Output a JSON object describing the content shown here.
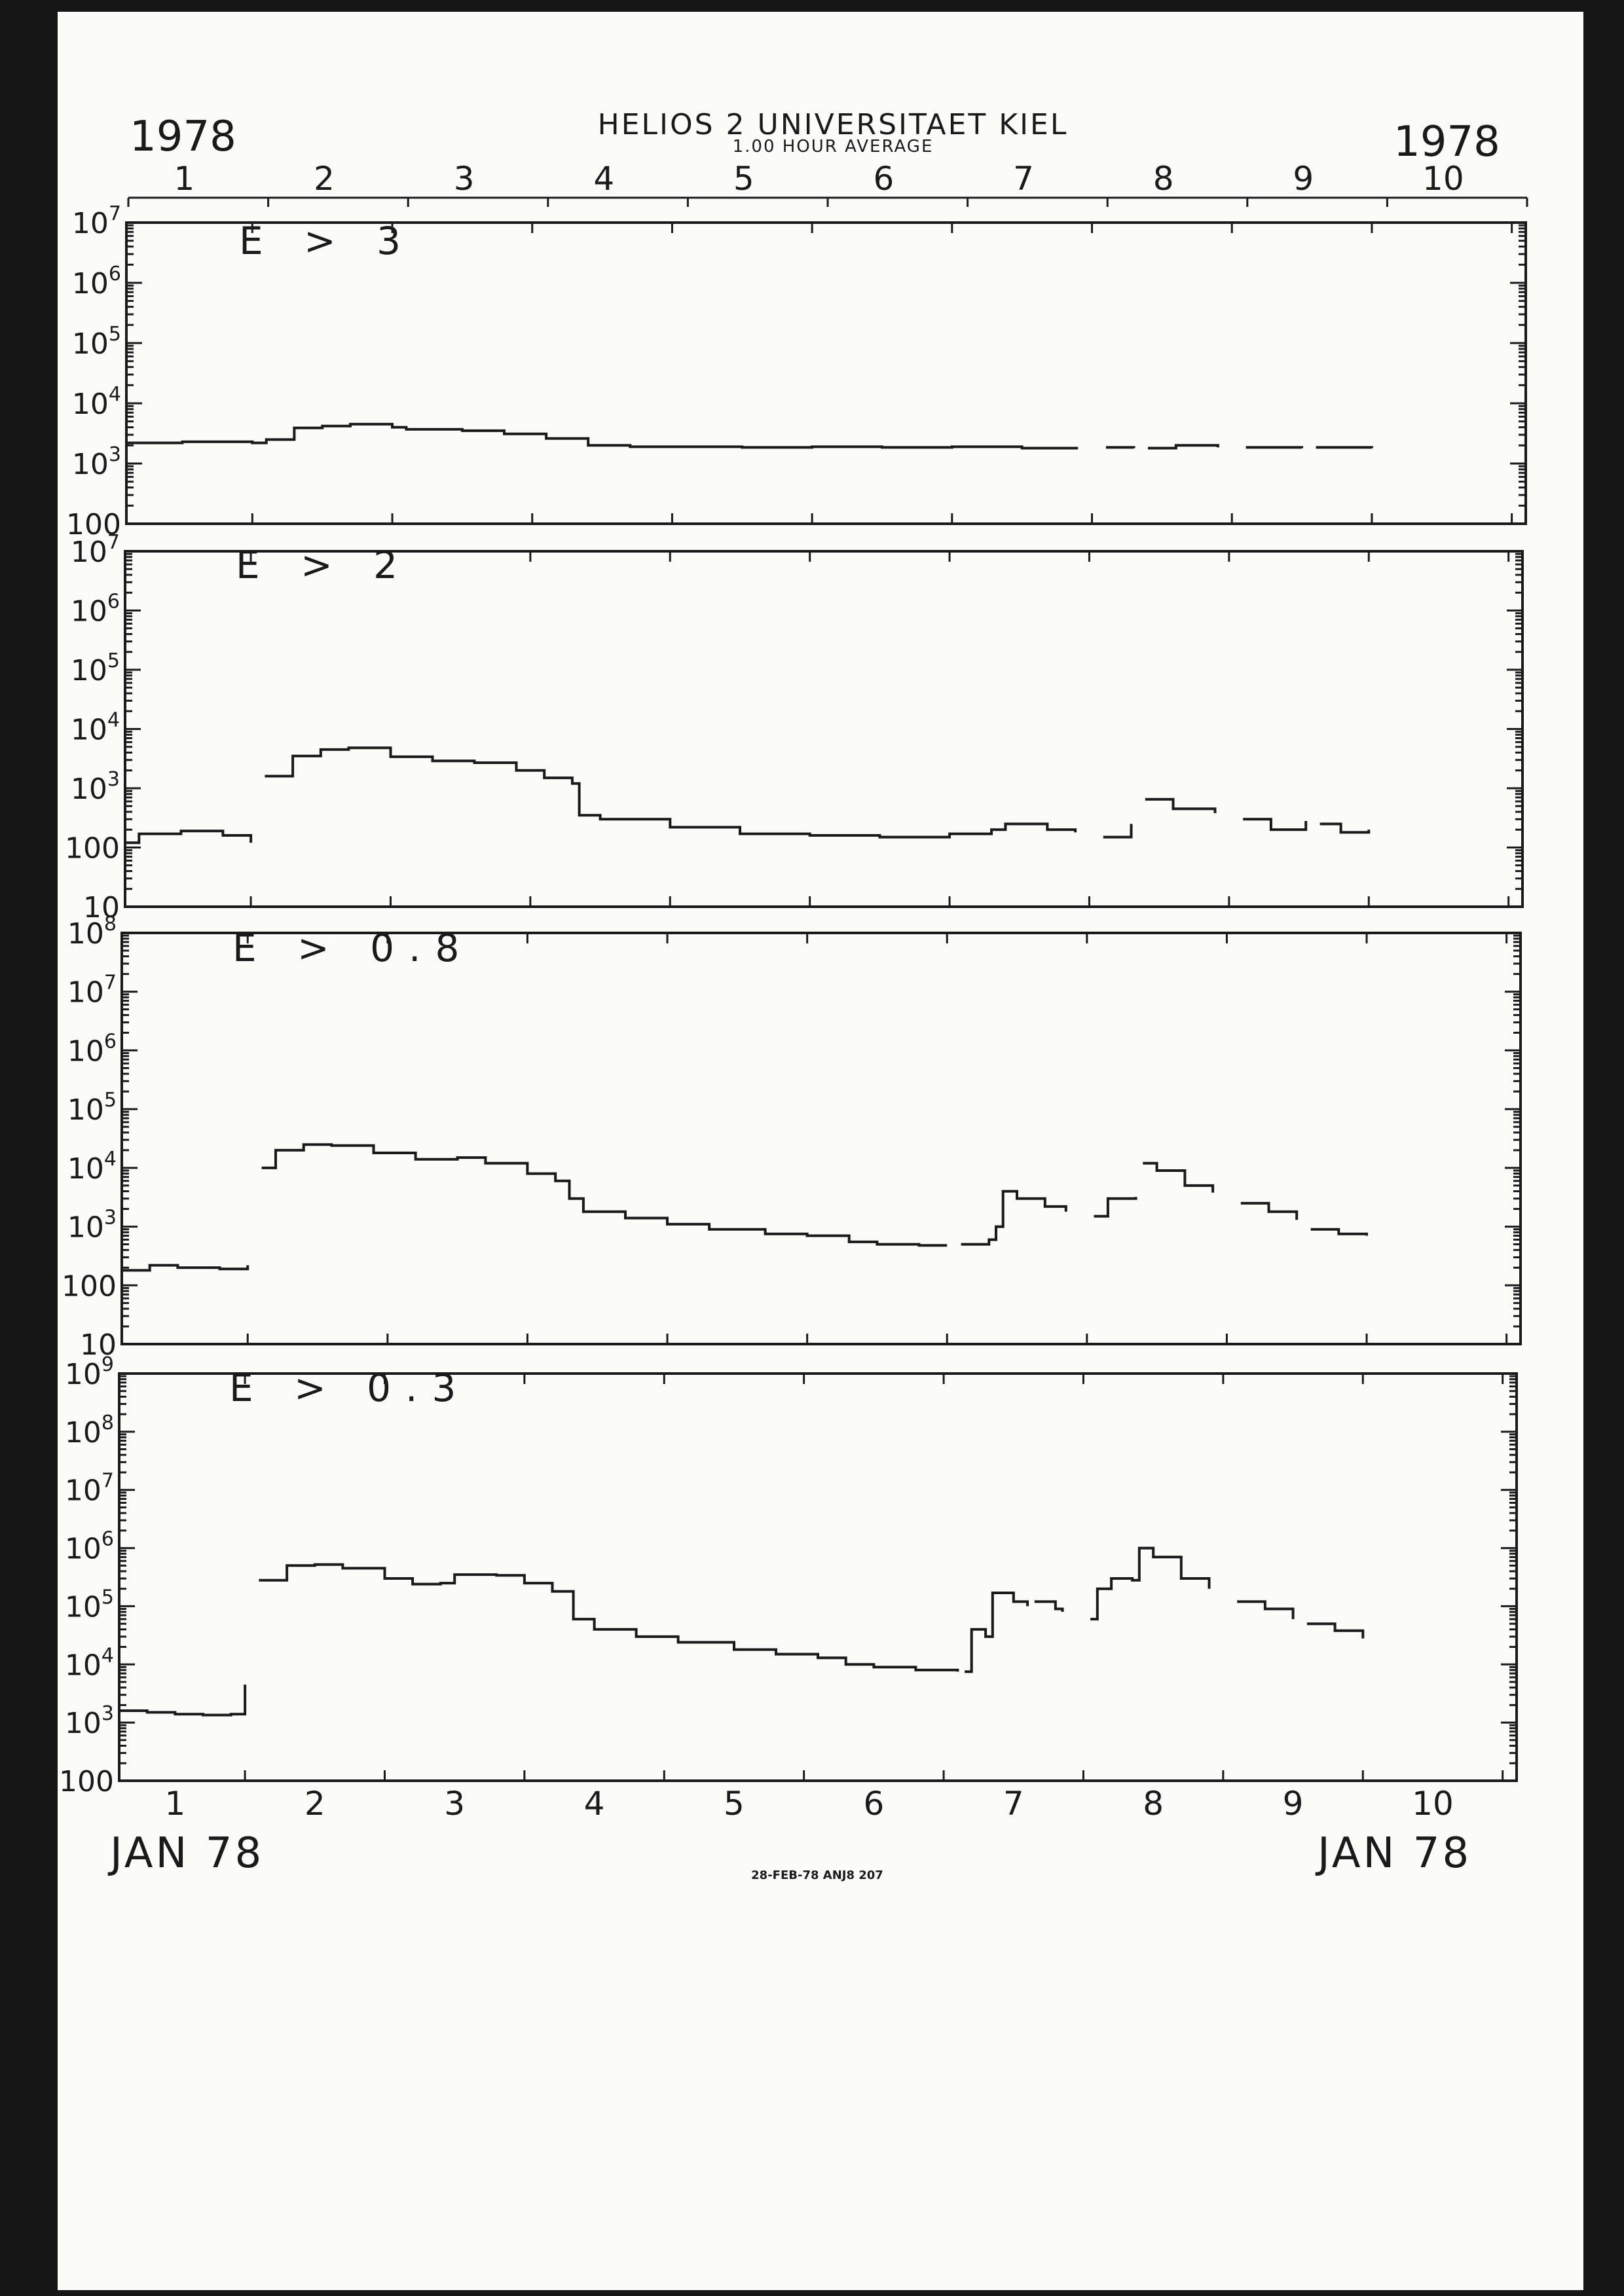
{
  "header": {
    "year_left": "1978",
    "year_right": "1978",
    "title": "HELIOS 2  UNIVERSITAET KIEL",
    "subtitle": "1.00 HOUR AVERAGE"
  },
  "footer": {
    "month_left": "JAN 78",
    "month_right": "JAN 78",
    "stamp": "28-FEB-78 ANJ8 207"
  },
  "chart_data": [
    {
      "type": "line",
      "label": "E > 3",
      "ylim": [
        100,
        10000000
      ],
      "y_scale": "log",
      "y_ticks": [
        {
          "v": 100,
          "base": "100",
          "exp": ""
        },
        {
          "v": 1000,
          "base": "10",
          "exp": "3"
        },
        {
          "v": 10000,
          "base": "10",
          "exp": "4"
        },
        {
          "v": 100000,
          "base": "10",
          "exp": "5"
        },
        {
          "v": 1000000,
          "base": "10",
          "exp": "6"
        },
        {
          "v": 10000000,
          "base": "10",
          "exp": "7"
        }
      ],
      "xlim": [
        0.6,
        10.6
      ],
      "x_ticks": [
        1,
        2,
        3,
        4,
        5,
        6,
        7,
        8,
        9,
        10
      ],
      "segments": [
        [
          [
            0.6,
            2200
          ],
          [
            1.0,
            2300
          ],
          [
            1.5,
            2200
          ],
          [
            1.6,
            2500
          ],
          [
            1.8,
            3900
          ],
          [
            2.0,
            4200
          ],
          [
            2.2,
            4500
          ],
          [
            2.5,
            4000
          ],
          [
            2.6,
            3700
          ],
          [
            3.0,
            3500
          ],
          [
            3.3,
            3100
          ],
          [
            3.6,
            2600
          ],
          [
            3.9,
            2000
          ],
          [
            4.2,
            1900
          ],
          [
            4.6,
            1900
          ],
          [
            5.0,
            1850
          ],
          [
            5.5,
            1900
          ],
          [
            6.0,
            1850
          ],
          [
            6.5,
            1900
          ],
          [
            7.0,
            1800
          ],
          [
            7.4,
            1800
          ]
        ],
        [
          [
            7.6,
            1850
          ],
          [
            7.8,
            1800
          ]
        ],
        [
          [
            7.9,
            1800
          ],
          [
            8.1,
            2000
          ],
          [
            8.4,
            1850
          ]
        ],
        [
          [
            8.6,
            1850
          ],
          [
            9.0,
            1800
          ]
        ],
        [
          [
            9.1,
            1850
          ],
          [
            9.5,
            1800
          ]
        ]
      ]
    },
    {
      "type": "line",
      "label": "E > 2",
      "ylim": [
        10,
        10000000
      ],
      "y_scale": "log",
      "y_ticks": [
        {
          "v": 10,
          "base": "10",
          "exp": ""
        },
        {
          "v": 100,
          "base": "100",
          "exp": ""
        },
        {
          "v": 1000,
          "base": "10",
          "exp": "3"
        },
        {
          "v": 10000,
          "base": "10",
          "exp": "4"
        },
        {
          "v": 100000,
          "base": "10",
          "exp": "5"
        },
        {
          "v": 1000000,
          "base": "10",
          "exp": "6"
        },
        {
          "v": 10000000,
          "base": "10",
          "exp": "7"
        }
      ],
      "xlim": [
        0.6,
        10.6
      ],
      "x_ticks": [
        1,
        2,
        3,
        4,
        5,
        6,
        7,
        8,
        9,
        10
      ],
      "segments": [
        [
          [
            0.6,
            120
          ],
          [
            0.7,
            170
          ],
          [
            1.0,
            190
          ],
          [
            1.3,
            160
          ],
          [
            1.5,
            120
          ]
        ],
        [
          [
            1.6,
            1600
          ],
          [
            1.8,
            3500
          ],
          [
            2.0,
            4500
          ],
          [
            2.2,
            4800
          ],
          [
            2.5,
            3400
          ],
          [
            2.8,
            2900
          ],
          [
            3.1,
            2700
          ],
          [
            3.4,
            2000
          ],
          [
            3.6,
            1500
          ],
          [
            3.8,
            1200
          ],
          [
            3.85,
            350
          ],
          [
            4.0,
            300
          ],
          [
            4.5,
            220
          ],
          [
            5.0,
            170
          ],
          [
            5.5,
            160
          ],
          [
            6.0,
            150
          ],
          [
            6.5,
            170
          ],
          [
            6.8,
            200
          ],
          [
            6.9,
            250
          ],
          [
            7.2,
            200
          ],
          [
            7.4,
            180
          ]
        ],
        [
          [
            7.6,
            150
          ],
          [
            7.8,
            250
          ]
        ],
        [
          [
            7.9,
            650
          ],
          [
            8.1,
            450
          ],
          [
            8.4,
            380
          ]
        ],
        [
          [
            8.6,
            300
          ],
          [
            8.8,
            200
          ],
          [
            9.0,
            200
          ],
          [
            9.05,
            280
          ]
        ],
        [
          [
            9.15,
            250
          ],
          [
            9.3,
            180
          ],
          [
            9.5,
            200
          ]
        ]
      ]
    },
    {
      "type": "line",
      "label": "E > 0.8",
      "ylim": [
        10,
        100000000
      ],
      "y_scale": "log",
      "y_ticks": [
        {
          "v": 10,
          "base": "10",
          "exp": ""
        },
        {
          "v": 100,
          "base": "100",
          "exp": ""
        },
        {
          "v": 1000,
          "base": "10",
          "exp": "3"
        },
        {
          "v": 10000,
          "base": "10",
          "exp": "4"
        },
        {
          "v": 100000,
          "base": "10",
          "exp": "5"
        },
        {
          "v": 1000000,
          "base": "10",
          "exp": "6"
        },
        {
          "v": 10000000,
          "base": "10",
          "exp": "7"
        },
        {
          "v": 100000000,
          "base": "10",
          "exp": "8"
        }
      ],
      "xlim": [
        0.6,
        10.6
      ],
      "x_ticks": [
        1,
        2,
        3,
        4,
        5,
        6,
        7,
        8,
        9,
        10
      ],
      "segments": [
        [
          [
            0.6,
            180
          ],
          [
            0.8,
            220
          ],
          [
            1.0,
            200
          ],
          [
            1.3,
            190
          ],
          [
            1.5,
            220
          ]
        ],
        [
          [
            1.6,
            10000
          ],
          [
            1.7,
            20000
          ],
          [
            1.9,
            25000
          ],
          [
            2.1,
            24000
          ],
          [
            2.4,
            18000
          ],
          [
            2.7,
            14000
          ],
          [
            3.0,
            15000
          ],
          [
            3.2,
            12000
          ],
          [
            3.5,
            8000
          ],
          [
            3.7,
            6000
          ],
          [
            3.8,
            3000
          ],
          [
            3.9,
            1800
          ],
          [
            4.2,
            1400
          ],
          [
            4.5,
            1100
          ],
          [
            4.8,
            900
          ],
          [
            5.2,
            750
          ],
          [
            5.5,
            700
          ],
          [
            5.8,
            550
          ],
          [
            6.0,
            500
          ],
          [
            6.3,
            480
          ],
          [
            6.5,
            480
          ]
        ],
        [
          [
            6.6,
            500
          ],
          [
            6.8,
            600
          ],
          [
            6.85,
            1000
          ],
          [
            6.9,
            4000
          ],
          [
            7.0,
            3000
          ],
          [
            7.2,
            2200
          ],
          [
            7.35,
            1800
          ]
        ],
        [
          [
            7.55,
            1500
          ],
          [
            7.65,
            3000
          ],
          [
            7.85,
            3200
          ]
        ],
        [
          [
            7.9,
            12000
          ],
          [
            8.0,
            9000
          ],
          [
            8.2,
            5000
          ],
          [
            8.4,
            3800
          ]
        ],
        [
          [
            8.6,
            2500
          ],
          [
            8.8,
            1800
          ],
          [
            9.0,
            1300
          ]
        ],
        [
          [
            9.1,
            900
          ],
          [
            9.3,
            750
          ],
          [
            9.5,
            700
          ]
        ]
      ]
    },
    {
      "type": "line",
      "label": "E > 0.3",
      "ylim": [
        100,
        1000000000
      ],
      "y_scale": "log",
      "y_ticks": [
        {
          "v": 100,
          "base": "100",
          "exp": ""
        },
        {
          "v": 1000,
          "base": "10",
          "exp": "3"
        },
        {
          "v": 10000,
          "base": "10",
          "exp": "4"
        },
        {
          "v": 100000,
          "base": "10",
          "exp": "5"
        },
        {
          "v": 1000000,
          "base": "10",
          "exp": "6"
        },
        {
          "v": 10000000,
          "base": "10",
          "exp": "7"
        },
        {
          "v": 100000000,
          "base": "10",
          "exp": "8"
        },
        {
          "v": 1000000000,
          "base": "10",
          "exp": "9"
        }
      ],
      "xlim": [
        0.6,
        10.6
      ],
      "x_ticks": [
        1,
        2,
        3,
        4,
        5,
        6,
        7,
        8,
        9,
        10
      ],
      "segments": [
        [
          [
            0.6,
            1600
          ],
          [
            0.8,
            1500
          ],
          [
            1.0,
            1400
          ],
          [
            1.2,
            1350
          ],
          [
            1.4,
            1400
          ],
          [
            1.5,
            4500
          ]
        ],
        [
          [
            1.6,
            280000
          ],
          [
            1.8,
            500000
          ],
          [
            2.0,
            520000
          ],
          [
            2.2,
            450000
          ],
          [
            2.5,
            300000
          ],
          [
            2.7,
            240000
          ],
          [
            2.9,
            250000
          ],
          [
            3.0,
            350000
          ],
          [
            3.3,
            340000
          ],
          [
            3.5,
            250000
          ],
          [
            3.7,
            180000
          ],
          [
            3.85,
            60000
          ],
          [
            4.0,
            40000
          ],
          [
            4.3,
            30000
          ],
          [
            4.6,
            24000
          ],
          [
            5.0,
            18000
          ],
          [
            5.3,
            15000
          ],
          [
            5.6,
            13000
          ],
          [
            5.8,
            10000
          ],
          [
            6.0,
            9000
          ],
          [
            6.3,
            8000
          ],
          [
            6.6,
            7500
          ]
        ],
        [
          [
            6.65,
            7500
          ],
          [
            6.7,
            40000
          ],
          [
            6.8,
            30000
          ],
          [
            6.85,
            170000
          ],
          [
            7.0,
            120000
          ],
          [
            7.1,
            100000
          ]
        ],
        [
          [
            7.15,
            120000
          ],
          [
            7.3,
            90000
          ],
          [
            7.35,
            80000
          ]
        ],
        [
          [
            7.55,
            60000
          ],
          [
            7.6,
            200000
          ],
          [
            7.7,
            300000
          ],
          [
            7.85,
            280000
          ],
          [
            7.9,
            1000000
          ],
          [
            8.0,
            700000
          ],
          [
            8.2,
            300000
          ],
          [
            8.4,
            200000
          ]
        ],
        [
          [
            8.6,
            120000
          ],
          [
            8.8,
            90000
          ],
          [
            9.0,
            60000
          ]
        ],
        [
          [
            9.1,
            50000
          ],
          [
            9.3,
            38000
          ],
          [
            9.5,
            28000
          ]
        ]
      ]
    }
  ]
}
